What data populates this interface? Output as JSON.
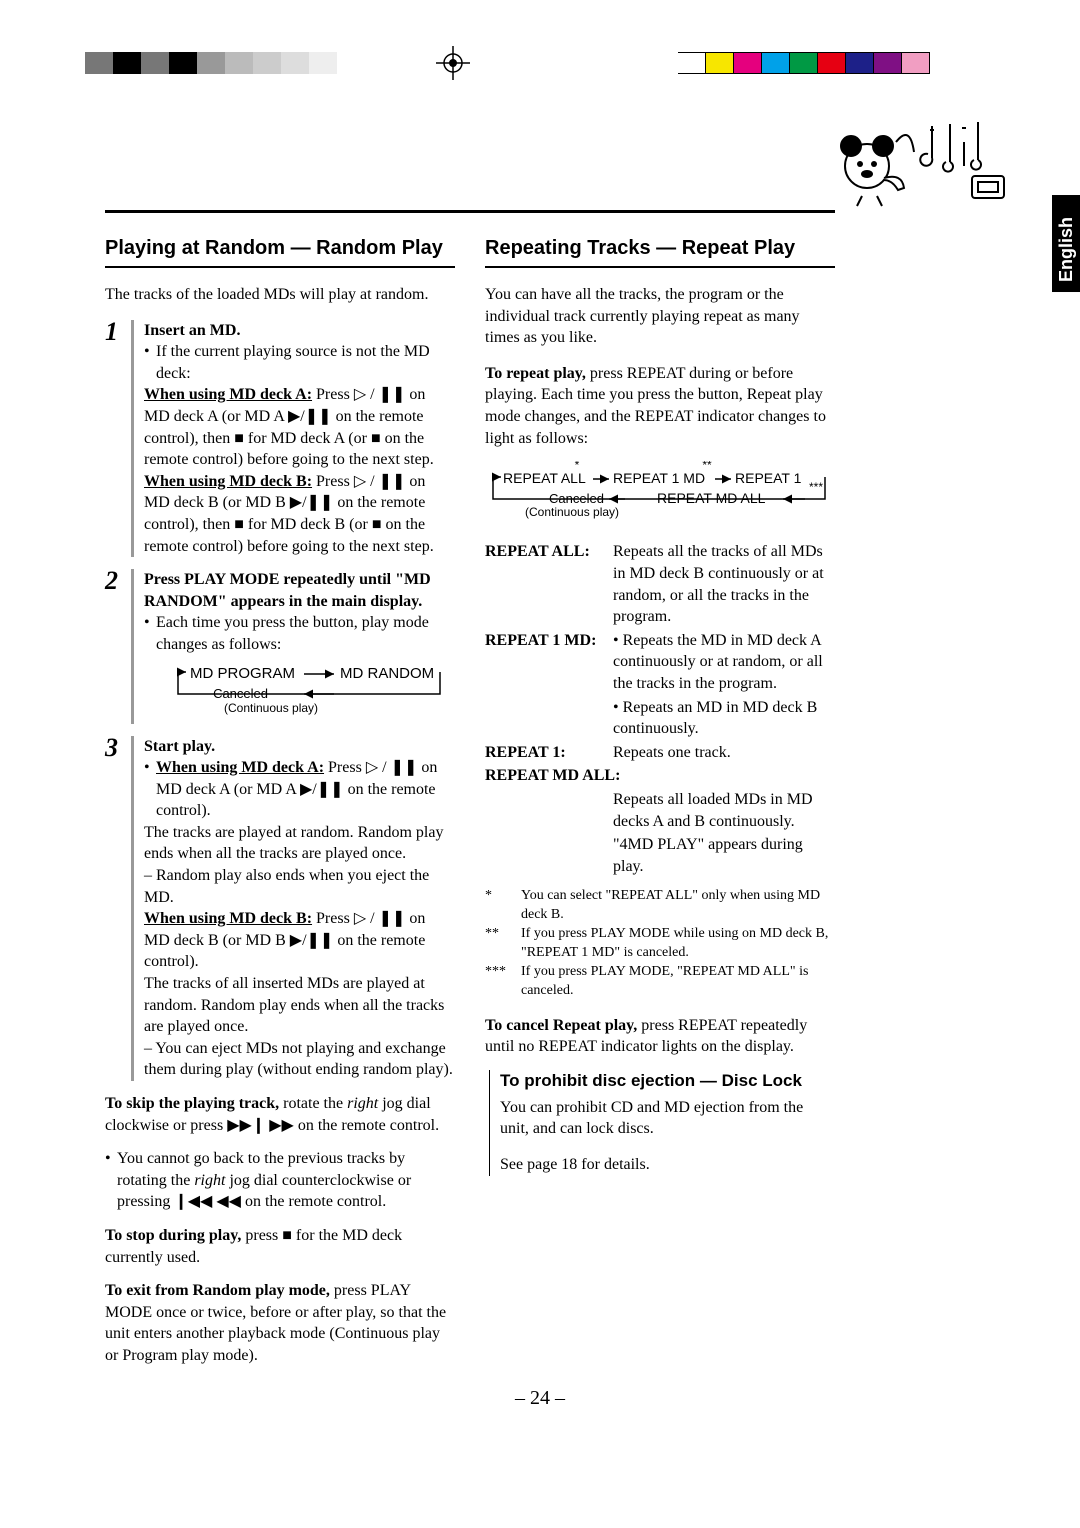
{
  "language_tab": "English",
  "page_number": "– 24 –",
  "color_bars": {
    "left": [
      "#777777",
      "#000000",
      "#777777",
      "#000000",
      "#999999",
      "#bbbbbb",
      "#cccccc",
      "#dddddd",
      "#eeeeee"
    ],
    "right": [
      "#ffffff",
      "#f7e600",
      "#e5007e",
      "#00a1e9",
      "#009944",
      "#e60012",
      "#1d2088",
      "#7f1084",
      "#f19ec2"
    ]
  },
  "left": {
    "heading": "Playing at Random — Random Play",
    "intro": "The tracks of the loaded MDs will play at random.",
    "step1": {
      "num": "1",
      "title": "Insert an MD.",
      "bullet_a": "If the current playing source is not the MD deck:",
      "when_a_label": "When using MD deck A:",
      "when_a_text": " Press ▷ / ❚❚ on MD deck A (or MD A ▶/❚❚ on the remote control), then ■ for MD deck A (or ■ on the remote control) before going to the next step.",
      "when_b_label": "When using MD deck B:",
      "when_b_text": " Press ▷ / ❚❚ on MD deck B (or MD B ▶/❚❚ on the remote control), then ■ for MD deck B (or ■ on the remote control) before going to the next step."
    },
    "step2": {
      "num": "2",
      "title": "Press PLAY MODE repeatedly until \"MD RANDOM\" appears in the main display.",
      "bullet": "Each time you press the button, play mode changes as follows:",
      "flow_a": "MD PROGRAM",
      "flow_b": "MD RANDOM",
      "flow_cancel": "Canceled",
      "flow_sub": "(Continuous play)"
    },
    "step3": {
      "num": "3",
      "title": "Start play.",
      "when_a_label": "When using MD deck A:",
      "when_a_text": " Press ▷ / ❚❚ on MD deck A (or MD A ▶/❚❚ on the remote control).",
      "p1": "The tracks are played at random. Random play ends when all the tracks are played once.",
      "p2": "– Random play also ends when you eject the MD.",
      "when_b_label": "When using MD deck B:",
      "when_b_text": " Press ▷ / ❚❚ on MD deck B (or MD B ▶/❚❚ on the remote control).",
      "p3": "The tracks of all inserted MDs are played at random. Random play ends when all the tracks are played once.",
      "p4": "– You can eject MDs not playing and exchange them during play (without ending random play)."
    },
    "skip_bold": "To skip the playing track,",
    "skip_rest": " rotate the ",
    "skip_italic": "right",
    "skip_rest2": " jog dial clockwise or press ▶▶❙ ▶▶ on the remote control.",
    "skip_bullet": "You cannot go back to the previous tracks by rotating the ",
    "skip_bullet_italic": "right",
    "skip_bullet2": " jog dial counterclockwise or pressing ❙◀◀ ◀◀ on the remote control.",
    "stop_bold": "To stop during play,",
    "stop_rest": " press ■ for the MD deck currently used.",
    "exit_bold": "To exit from Random play mode,",
    "exit_rest": " press PLAY MODE once or twice, before or after play, so that the unit enters another playback mode (Continuous play or Program play mode)."
  },
  "right": {
    "heading": "Repeating Tracks — Repeat Play",
    "intro": "You can have all the tracks, the program or the individual track currently playing repeat as many times as you like.",
    "repeat_bold": "To repeat play,",
    "repeat_rest": " press REPEAT during or before playing. Each time you press the button, Repeat play mode changes, and the REPEAT indicator changes to light as follows:",
    "flow": {
      "a": "REPEAT ALL",
      "b": "REPEAT 1 MD",
      "c": "REPEAT 1",
      "d": "REPEAT MD ALL",
      "cancel": "Canceled",
      "sub": "(Continuous play)",
      "n1": "*",
      "n2": "**",
      "n3": "***"
    },
    "def_all_k": "REPEAT ALL",
    "def_all_v": "Repeats all the tracks of all MDs in MD deck B continuously or at random, or all the tracks in the program.",
    "def_1md_k": "REPEAT 1 MD",
    "def_1md_v1": "Repeats the MD in MD deck A continuously or at random, or all the tracks in the program.",
    "def_1md_v2": "Repeats an MD in MD deck B continuously.",
    "def_r1_k": "REPEAT 1",
    "def_r1_v": "Repeats one track.",
    "def_mdall_k": "REPEAT MD ALL",
    "def_mdall_v1": "Repeats all loaded MDs in MD decks A and B continuously.",
    "def_mdall_v2": "\"4MD PLAY\" appears during play.",
    "note1": "You can select \"REPEAT ALL\" only when using MD deck B.",
    "note2": "If you press PLAY MODE while using on MD deck B, \"REPEAT 1 MD\" is canceled.",
    "note3": "If you press PLAY MODE, \"REPEAT MD ALL\" is canceled.",
    "cancel_bold": "To cancel Repeat play,",
    "cancel_rest": " press REPEAT repeatedly until no REPEAT indicator lights on the display.",
    "disc_head": "To prohibit disc ejection — Disc Lock",
    "disc_p1": "You can prohibit CD and MD ejection from the unit, and can lock discs.",
    "disc_p2": "See page 18 for details."
  }
}
